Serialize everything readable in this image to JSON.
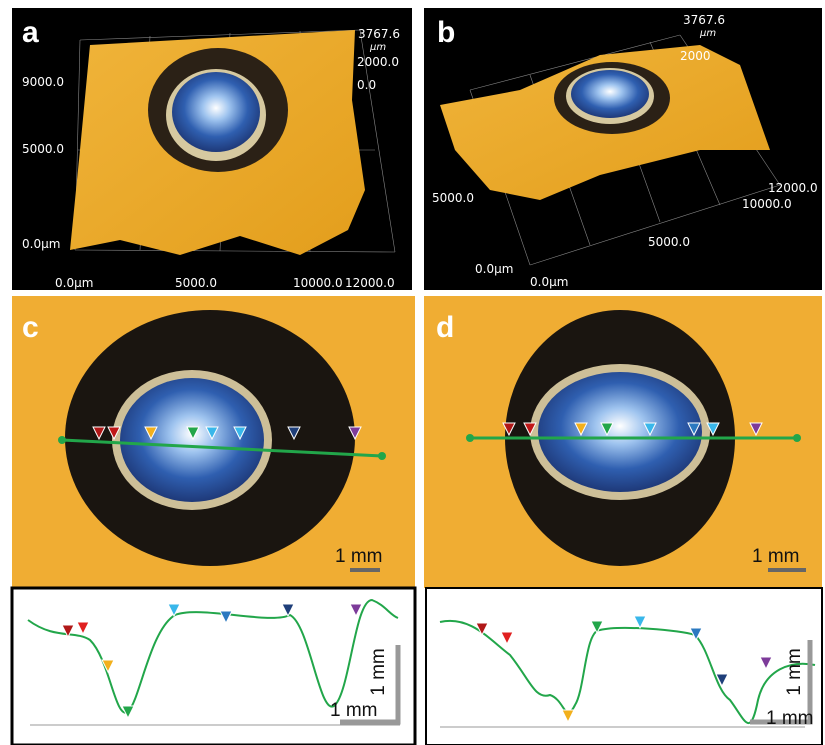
{
  "panels": [
    {
      "label": "a",
      "texts": [
        "3767.6",
        "μm",
        "2000.0",
        "0.0",
        "9000.0",
        "5000.0",
        "0.0μm",
        "0.0μm",
        "5000.0",
        "10000.0",
        "12000.0"
      ]
    },
    {
      "label": "b",
      "texts": [
        "3767.6",
        "μm",
        "2000",
        "12000.0",
        "10000.0",
        "5000.0",
        "5000.0",
        "0.0μm",
        "0.0μm"
      ]
    },
    {
      "label": "c",
      "scale_bar": "1 mm",
      "profile_scale_bars": [
        "1 mm",
        "1 mm"
      ]
    },
    {
      "label": "d",
      "scale_bar": "1 mm",
      "profile_scale_bars": [
        "1 mm",
        "1 mm"
      ]
    }
  ]
}
